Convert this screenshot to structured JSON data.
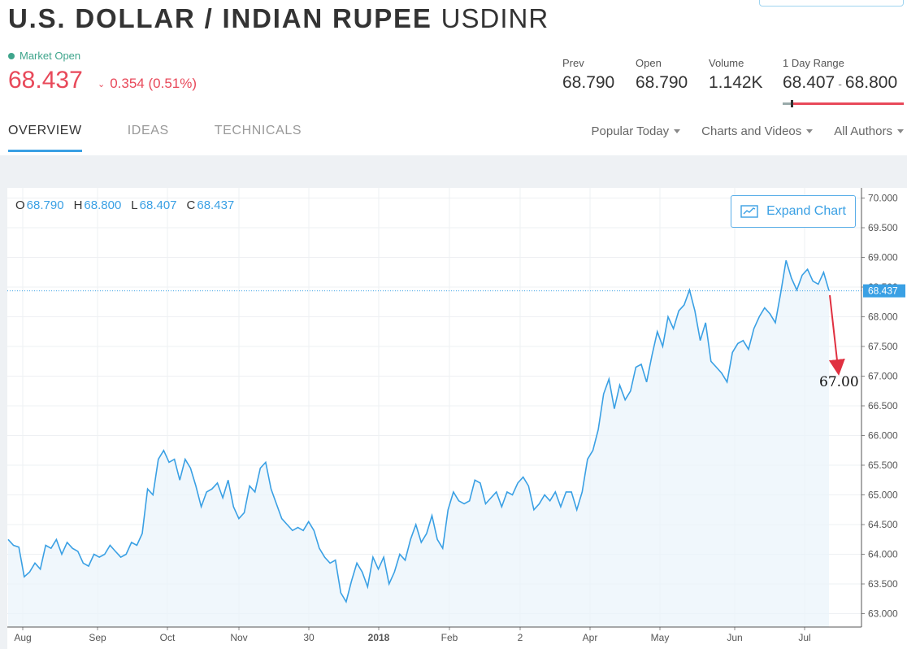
{
  "header": {
    "title": "U.S. DOLLAR / INDIAN RUPEE",
    "ticker": "USDINR",
    "market_status": "Market Open",
    "price": "68.437",
    "change": "0.354 (0.51%)",
    "colors": {
      "negative": "#e8495a",
      "positive_status": "#3fa58c",
      "accent": "#3aa0e4"
    }
  },
  "stats": {
    "prev_label": "Prev",
    "prev_value": "68.790",
    "open_label": "Open",
    "open_value": "68.790",
    "volume_label": "Volume",
    "volume_value": "1.142K",
    "range_label": "1 Day Range",
    "range_low": "68.407",
    "range_sep": "-",
    "range_high": "68.800"
  },
  "tabs": [
    "OVERVIEW",
    "IDEAS",
    "TECHNICALS"
  ],
  "filters": [
    "Popular Today",
    "Charts and Videos",
    "All Authors"
  ],
  "ohlc": {
    "o_label": "O",
    "o_value": "68.790",
    "h_label": "H",
    "h_value": "68.800",
    "l_label": "L",
    "l_value": "68.407",
    "c_label": "C",
    "c_value": "68.437"
  },
  "expand_chart_label": "Expand Chart",
  "icons": {
    "expand": "line-chart-icon",
    "dropdown": "chevron-down-icon",
    "status": "status-dot-icon"
  },
  "chart_data": {
    "type": "area",
    "ylim": [
      62.85,
      70.15
    ],
    "yticks": [
      "70.000",
      "69.500",
      "69.000",
      "68.500",
      "68.000",
      "67.500",
      "67.000",
      "66.500",
      "66.000",
      "65.500",
      "65.000",
      "64.500",
      "64.000",
      "63.500",
      "63.000"
    ],
    "xticks": [
      "Aug",
      "Sep",
      "Oct",
      "Nov",
      "30",
      "2018",
      "Feb",
      "2",
      "Apr",
      "May",
      "Jun",
      "Jul"
    ],
    "current_price_label": "68.437",
    "annotation": "67.00",
    "line_color": "#3aa0e4",
    "annotation_color": "#e03040",
    "series": [
      {
        "values": [
          64.25,
          64.15,
          64.12,
          63.62,
          63.7,
          63.85,
          63.75,
          64.15,
          64.1,
          64.25,
          64.0,
          64.2,
          64.1,
          64.05,
          63.85,
          63.8,
          64.0,
          63.95,
          64.0,
          64.15,
          64.05,
          63.95,
          64.0,
          64.2,
          64.15,
          64.35,
          65.1,
          65.0,
          65.6,
          65.75,
          65.55,
          65.6,
          65.25,
          65.6,
          65.45,
          65.15,
          64.8,
          65.05,
          65.1,
          65.2,
          64.95,
          65.25,
          64.8,
          64.6,
          64.7,
          65.15,
          65.05,
          65.45,
          65.55,
          65.1,
          64.85,
          64.6,
          64.5,
          64.4,
          64.45,
          64.4,
          64.55,
          64.4,
          64.1,
          63.95,
          63.85,
          63.9,
          63.35,
          63.2,
          63.55,
          63.85,
          63.7,
          63.45,
          63.95,
          63.75,
          63.95,
          63.5,
          63.7,
          64.0,
          63.9,
          64.25,
          64.5,
          64.2,
          64.35,
          64.65,
          64.25,
          64.1,
          64.75,
          65.05,
          64.9,
          64.85,
          64.9,
          65.25,
          65.2,
          64.85,
          64.95,
          65.05,
          64.8,
          65.05,
          65.0,
          65.2,
          65.3,
          65.15,
          64.75,
          64.85,
          65.0,
          64.9,
          65.05,
          64.8,
          65.05,
          65.05,
          64.75,
          65.05,
          65.6,
          65.75,
          66.1,
          66.7,
          66.95,
          66.45,
          66.85,
          66.6,
          66.75,
          67.15,
          67.2,
          66.9,
          67.35,
          67.75,
          67.5,
          68.0,
          67.8,
          68.1,
          68.2,
          68.45,
          68.1,
          67.6,
          67.9,
          67.25,
          67.15,
          67.05,
          66.9,
          67.4,
          67.55,
          67.6,
          67.45,
          67.8,
          68.0,
          68.15,
          68.05,
          67.9,
          68.4,
          68.95,
          68.65,
          68.45,
          68.7,
          68.8,
          68.6,
          68.55,
          68.75,
          68.44
        ]
      }
    ]
  }
}
